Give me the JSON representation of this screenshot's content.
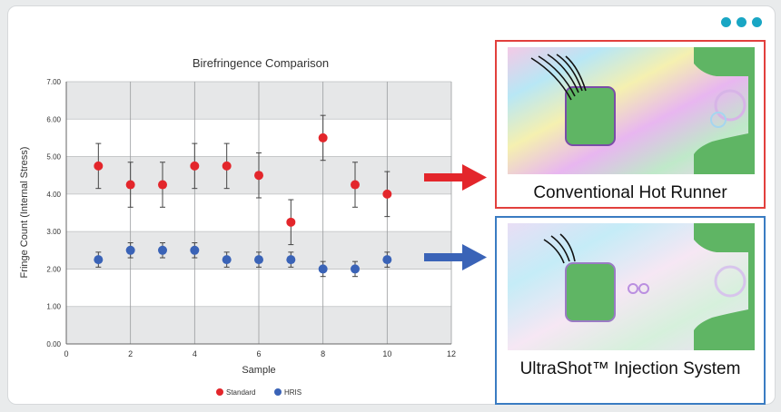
{
  "menu": {
    "icon": "more-dots-icon"
  },
  "chart_data": {
    "type": "scatter",
    "title": "Birefringence Comparison",
    "xlabel": "Sample",
    "ylabel": "Fringe Count (Internal Stress)",
    "xlim": [
      0,
      12
    ],
    "ylim": [
      0,
      7
    ],
    "xticks": [
      "0",
      "2",
      "4",
      "6",
      "8",
      "10",
      "12"
    ],
    "yticks": [
      "0.00",
      "1.00",
      "2.00",
      "3.00",
      "4.00",
      "5.00",
      "6.00",
      "7.00"
    ],
    "grid": true,
    "legend": "bottom",
    "series": [
      {
        "name": "Standard",
        "color": "#e3262b",
        "points": [
          {
            "x": 1,
            "y": 4.75,
            "err": 0.6
          },
          {
            "x": 2,
            "y": 4.25,
            "err": 0.6
          },
          {
            "x": 3,
            "y": 4.25,
            "err": 0.6
          },
          {
            "x": 4,
            "y": 4.75,
            "err": 0.6
          },
          {
            "x": 5,
            "y": 4.75,
            "err": 0.6
          },
          {
            "x": 6,
            "y": 4.5,
            "err": 0.6
          },
          {
            "x": 7,
            "y": 3.25,
            "err": 0.6
          },
          {
            "x": 8,
            "y": 5.5,
            "err": 0.6
          },
          {
            "x": 9,
            "y": 4.25,
            "err": 0.6
          },
          {
            "x": 10,
            "y": 4.0,
            "err": 0.6
          }
        ]
      },
      {
        "name": "HRIS",
        "color": "#3a63b7",
        "points": [
          {
            "x": 1,
            "y": 2.25,
            "err": 0.2
          },
          {
            "x": 2,
            "y": 2.5,
            "err": 0.2
          },
          {
            "x": 3,
            "y": 2.5,
            "err": 0.2
          },
          {
            "x": 4,
            "y": 2.5,
            "err": 0.2
          },
          {
            "x": 5,
            "y": 2.25,
            "err": 0.2
          },
          {
            "x": 6,
            "y": 2.25,
            "err": 0.2
          },
          {
            "x": 7,
            "y": 2.25,
            "err": 0.2
          },
          {
            "x": 8,
            "y": 2.0,
            "err": 0.2
          },
          {
            "x": 9,
            "y": 2.0,
            "err": 0.2
          },
          {
            "x": 10,
            "y": 2.25,
            "err": 0.2
          }
        ]
      }
    ]
  },
  "arrows": [
    {
      "color": "#e3262b",
      "icon": "arrow-right-icon"
    },
    {
      "color": "#3a63b7",
      "icon": "arrow-right-icon"
    }
  ],
  "panels": {
    "top": {
      "caption": "Conventional Hot Runner",
      "border": "#e2403d"
    },
    "bottom": {
      "caption": "UltraShot™ Injection System",
      "border": "#3a7cc2"
    }
  }
}
